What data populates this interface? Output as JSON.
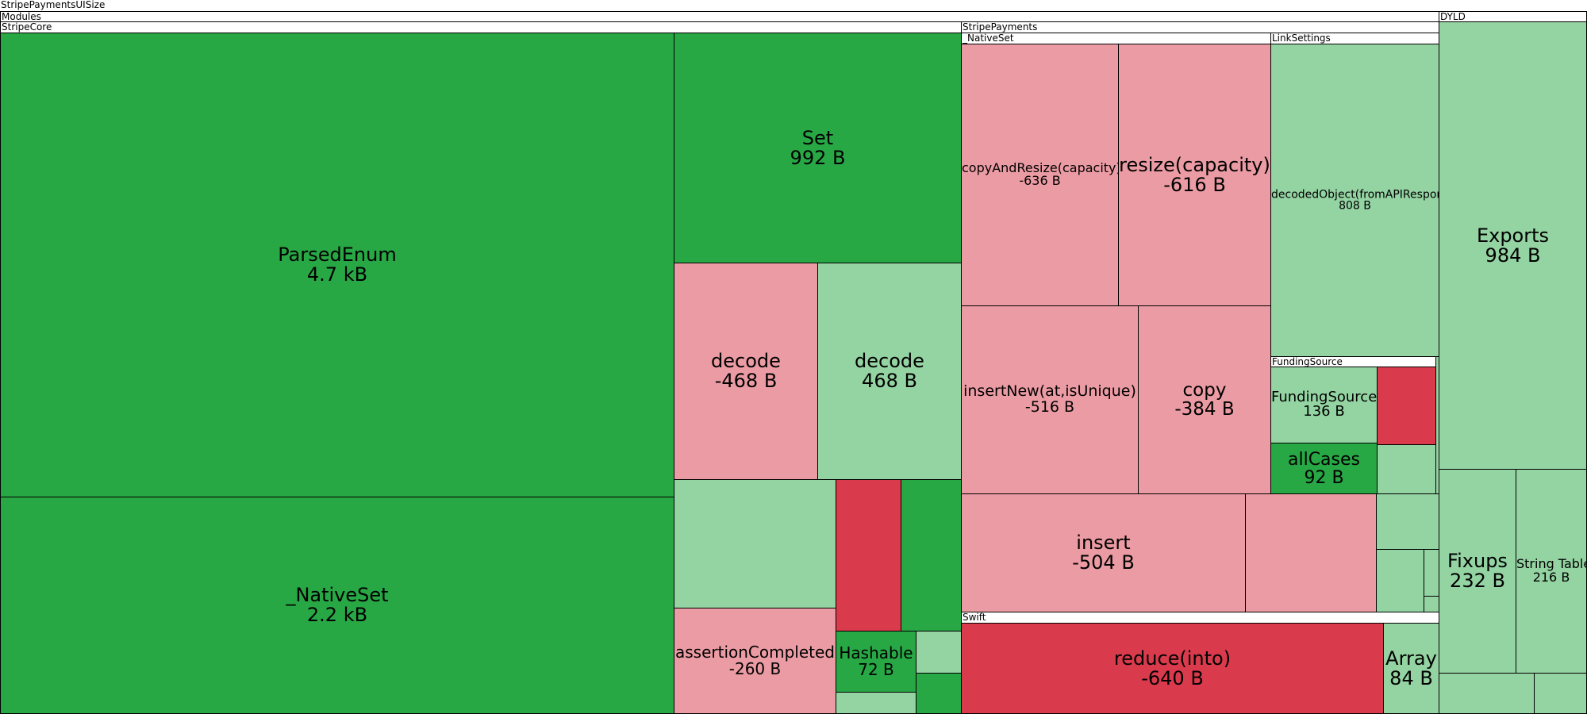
{
  "colors": {
    "increase_strong": "#28a745",
    "increase_light": "#94d3a2",
    "decrease_light": "#eb9ba3",
    "decrease_strong": "#d93a4c",
    "header_bg": "#ffffff"
  },
  "chart_data": {
    "type": "treemap",
    "root": "StripePaymentsUISize",
    "groups": [
      {
        "path": "StripePaymentsUISize"
      },
      {
        "path": "StripePaymentsUISize/Modules"
      },
      {
        "path": "StripePaymentsUISize/DYLD"
      },
      {
        "path": "StripePaymentsUISize/Modules/StripeCore"
      },
      {
        "path": "StripePaymentsUISize/Modules/StripePayments"
      },
      {
        "path": "StripePaymentsUISize/Modules/StripePayments/_NativeSet"
      },
      {
        "path": "StripePaymentsUISize/Modules/StripePayments/LinkSettings"
      },
      {
        "path": "StripePaymentsUISize/Modules/StripePayments/LinkSettings/FundingSource"
      },
      {
        "path": "StripePaymentsUISize/Modules/StripePayments/Swift"
      }
    ],
    "labels": {
      "root": "StripePaymentsUISize",
      "modules": "Modules",
      "dyld": "DYLD",
      "stripecore": "StripeCore",
      "stripepayments": "StripePayments",
      "nativeset_group": "_NativeSet",
      "linksettings": "LinkSettings",
      "fundingsource_group": "FundingSource",
      "swift": "Swift"
    },
    "tiles": {
      "parsedenum": {
        "name": "ParsedEnum",
        "size": "4.7 kB"
      },
      "nativeset": {
        "name": "_NativeSet",
        "size": "2.2 kB"
      },
      "set": {
        "name": "Set",
        "size": "992 B"
      },
      "decode_neg": {
        "name": "decode",
        "size": "-468 B"
      },
      "decode_pos": {
        "name": "decode",
        "size": "468 B"
      },
      "assertion": {
        "name": "assertionCompleted",
        "size": "-260 B"
      },
      "hashable": {
        "name": "Hashable",
        "size": "72 B"
      },
      "copyandresize": {
        "name": "copyAndResize(capacity)",
        "size": "-636 B"
      },
      "resize": {
        "name": "resize(capacity)",
        "size": "-616 B"
      },
      "insertnew": {
        "name": "insertNew(at,isUnique)",
        "size": "-516 B"
      },
      "copy": {
        "name": "copy",
        "size": "-384 B"
      },
      "insert": {
        "name": "insert",
        "size": "-504 B"
      },
      "decodedobject": {
        "name": "decodedObject(fromAPIResponse)",
        "size": "808 B"
      },
      "fundingsource": {
        "name": "FundingSource",
        "size": "136 B"
      },
      "allcases": {
        "name": "allCases",
        "size": "92 B"
      },
      "reduce": {
        "name": "reduce(into)",
        "size": "-640 B"
      },
      "array": {
        "name": "Array",
        "size": "84 B"
      },
      "exports": {
        "name": "Exports",
        "size": "984 B"
      },
      "fixups": {
        "name": "Fixups",
        "size": "232 B"
      },
      "stringtable": {
        "name": "String Table",
        "size": "216 B"
      }
    }
  }
}
